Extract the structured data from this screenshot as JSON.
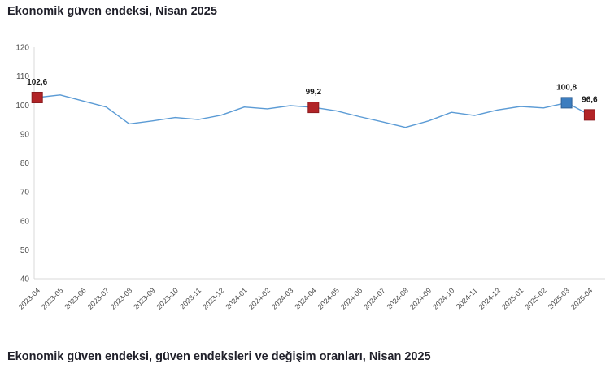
{
  "page": {
    "title": "Ekonomik güven endeksi, Nisan 2025",
    "bottom_heading": "Ekonomik güven endeksi, güven endeksleri ve değişim oranları, Nisan 2025"
  },
  "colors": {
    "line": "#5b9bd5",
    "marker_red": "#b22427",
    "marker_red_border": "#8c1c1f",
    "marker_blue": "#3c7dbf",
    "marker_blue_border": "#2e5f94",
    "axis_line": "#d9d9d9",
    "tick_text": "#4d4d4d",
    "title_text": "#20202a",
    "point_label_text": "#1a1a1a"
  },
  "chart_data": {
    "type": "line",
    "title": "Ekonomik güven endeksi, Nisan 2025",
    "xlabel": "",
    "ylabel": "",
    "ylim": [
      40,
      120
    ],
    "ytick_step": 10,
    "grid": false,
    "legend": "none",
    "categories": [
      "2023-04",
      "2023-05",
      "2023-06",
      "2023-07",
      "2023-08",
      "2023-09",
      "2023-10",
      "2023-11",
      "2023-12",
      "2024-01",
      "2024-02",
      "2024-03",
      "2024-04",
      "2024-05",
      "2024-06",
      "2024-07",
      "2024-08",
      "2024-09",
      "2024-10",
      "2024-11",
      "2024-12",
      "2025-01",
      "2025-02",
      "2025-03",
      "2025-04"
    ],
    "values": [
      102.6,
      103.5,
      101.4,
      99.3,
      93.5,
      94.5,
      95.7,
      95.0,
      96.5,
      99.3,
      98.7,
      99.8,
      99.2,
      98.0,
      96.0,
      94.2,
      92.3,
      94.5,
      97.5,
      96.4,
      98.3,
      99.5,
      99.0,
      100.8,
      96.6
    ],
    "highlighted_points": [
      {
        "category": "2023-04",
        "index": 0,
        "value": 102.6,
        "label": "102,6",
        "marker": "red"
      },
      {
        "category": "2024-04",
        "index": 12,
        "value": 99.2,
        "label": "99,2",
        "marker": "red"
      },
      {
        "category": "2025-03",
        "index": 23,
        "value": 100.8,
        "label": "100,8",
        "marker": "blue"
      },
      {
        "category": "2025-04",
        "index": 24,
        "value": 96.6,
        "label": "96,6",
        "marker": "red"
      }
    ]
  }
}
